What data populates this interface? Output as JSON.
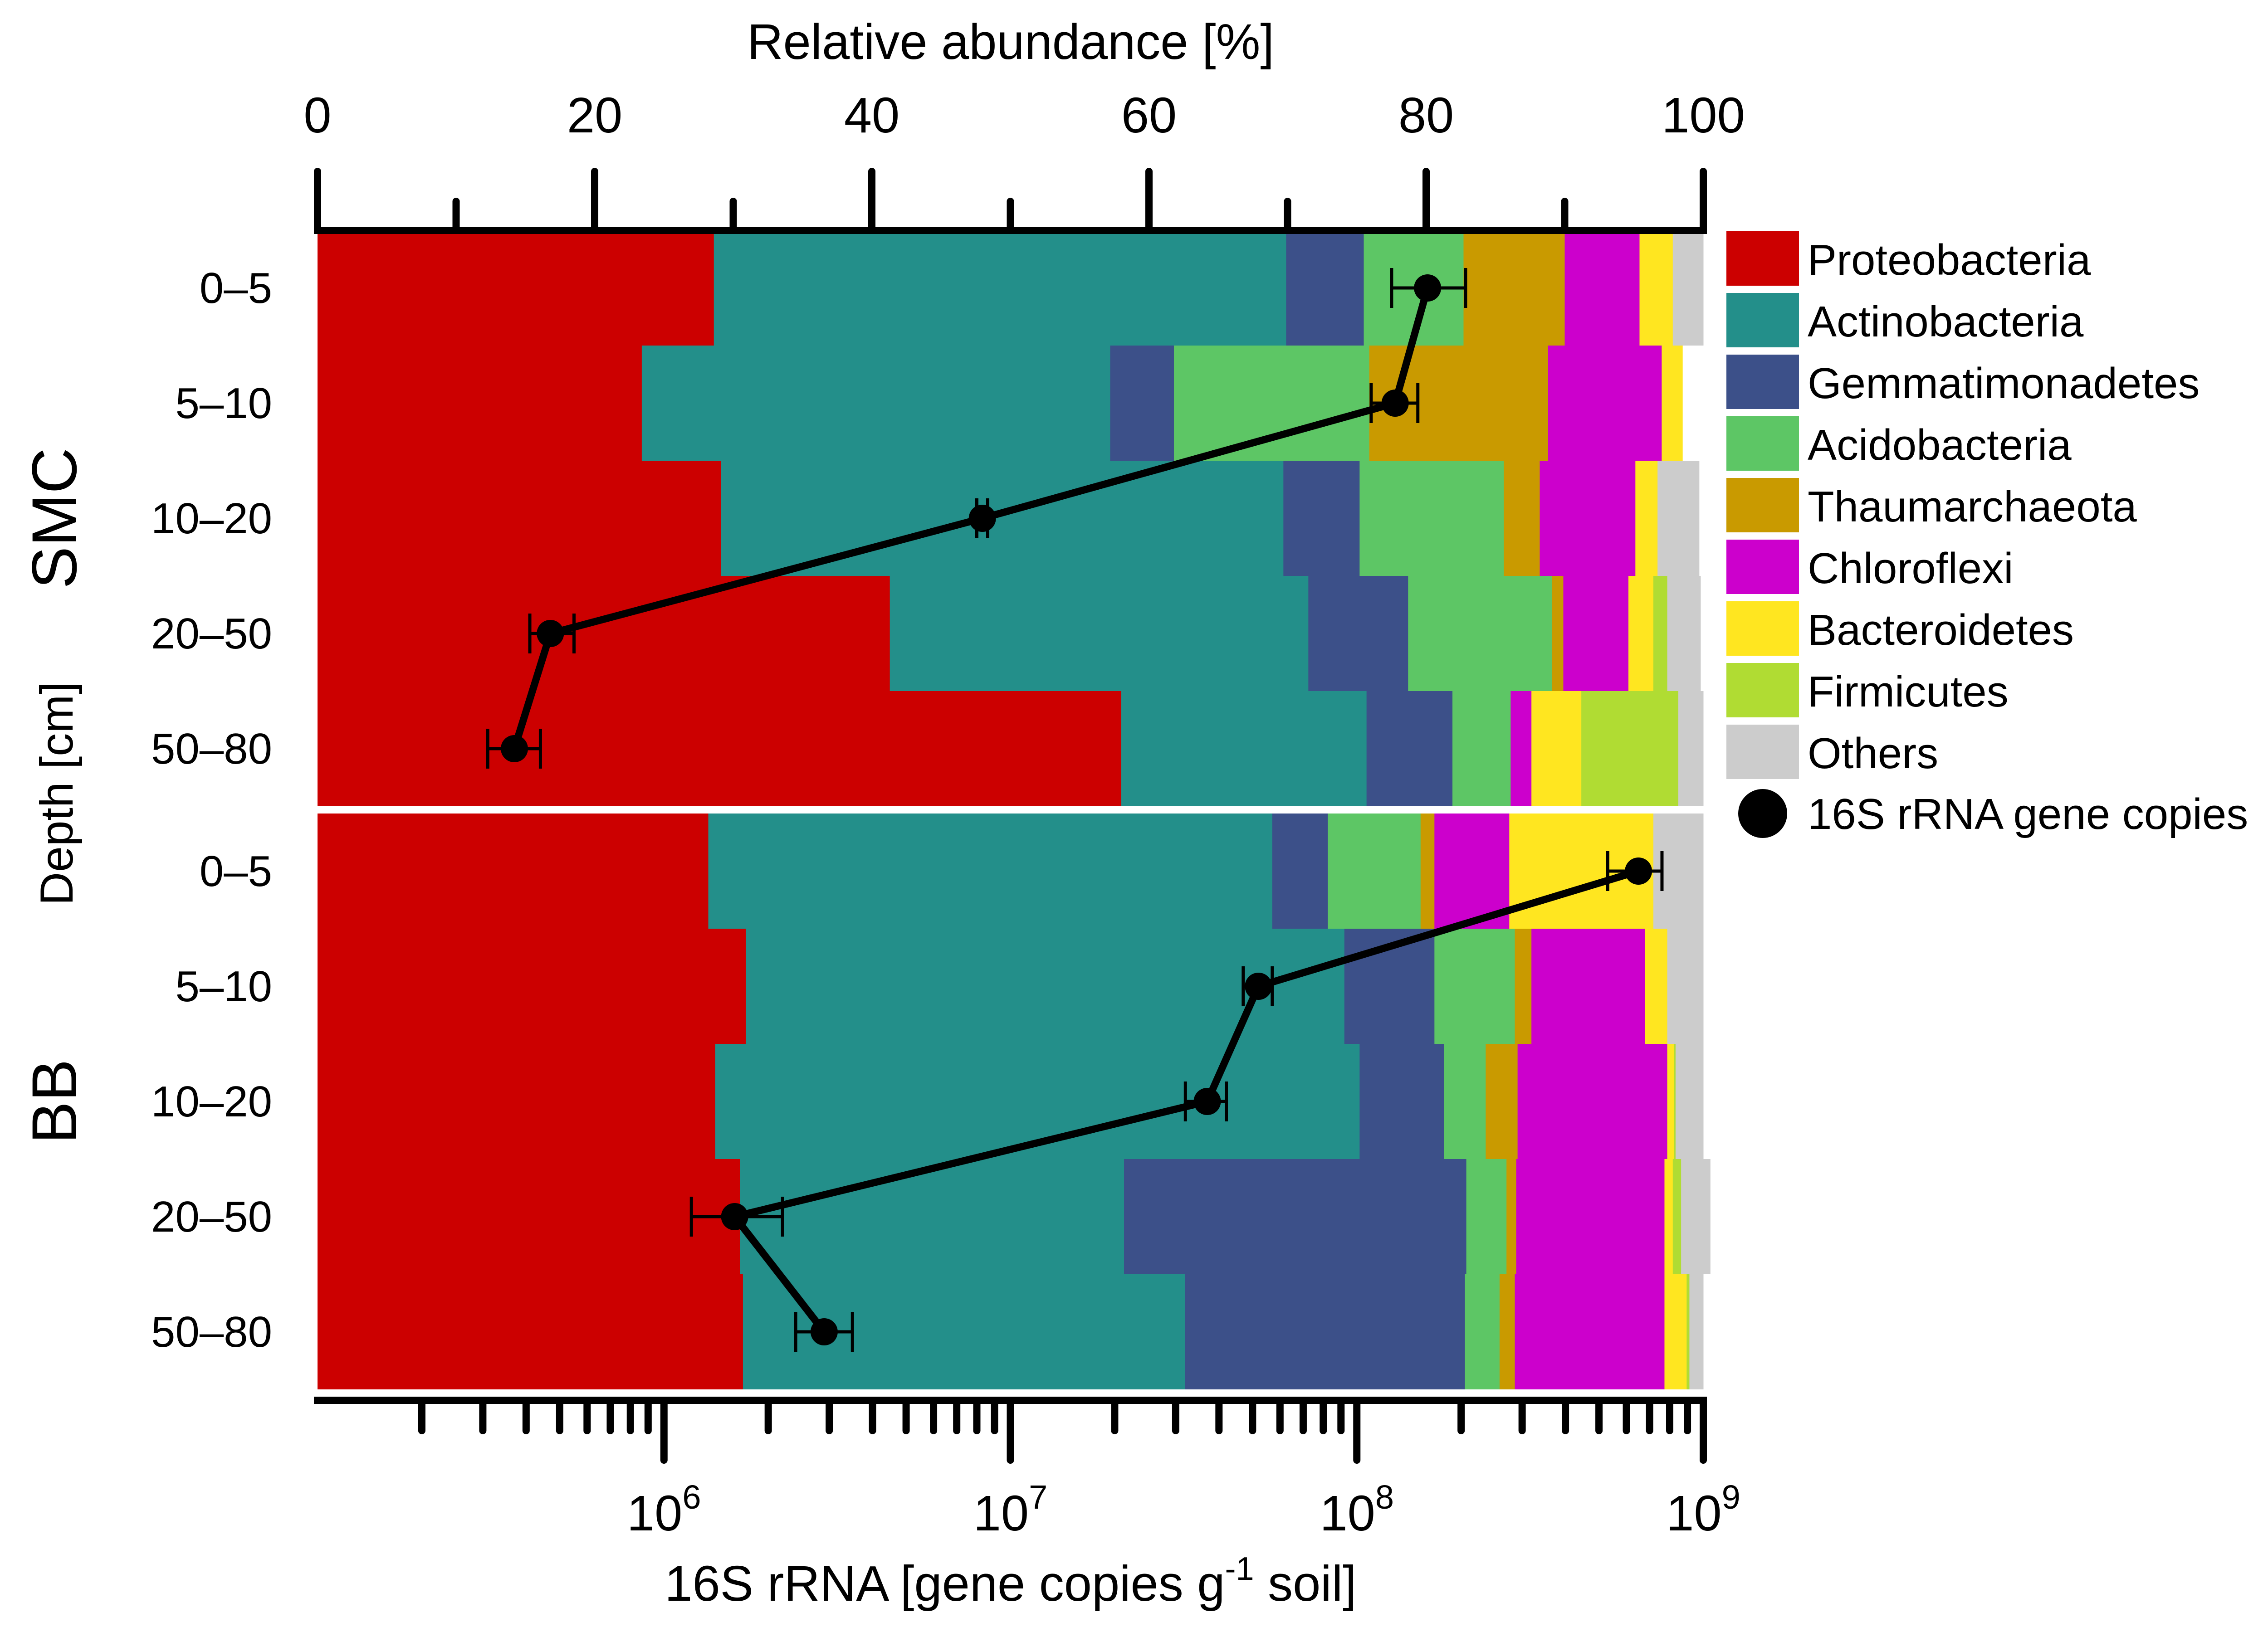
{
  "chart_data": {
    "type": "bar",
    "subtype": "horizontal-stacked-percent-with-line-overlay",
    "top_axis": {
      "label": "Relative abundance [%]",
      "range": [
        0,
        100
      ],
      "major_ticks": [
        0,
        20,
        40,
        60,
        80,
        100
      ],
      "tick_labels": [
        "0",
        "20",
        "40",
        "60",
        "80",
        "100"
      ],
      "minor_ticks": [
        10,
        30,
        50,
        70,
        90
      ]
    },
    "bottom_axis": {
      "label_prefix": "16S rRNA [gene copies g",
      "label_sup": "-1",
      "label_suffix": " soil]",
      "scale": "log10",
      "range": [
        100000,
        1000000000
      ],
      "major_ticks": [
        {
          "value": 1000000,
          "base": "10",
          "exp": "6"
        },
        {
          "value": 10000000,
          "base": "10",
          "exp": "7"
        },
        {
          "value": 100000000,
          "base": "10",
          "exp": "8"
        },
        {
          "value": 1000000000,
          "base": "10",
          "exp": "9"
        }
      ]
    },
    "y_axis_label": "Depth [cm]",
    "categories": [
      "Proteobacteria",
      "Actinobacteria",
      "Gemmatimonadetes",
      "Acidobacteria",
      "Thaumarchaeota",
      "Chloroflexi",
      "Bacteroidetes",
      "Firmicutes",
      "Others"
    ],
    "colors": [
      "#cc0000",
      "#238f8a",
      "#3c5089",
      "#5dc665",
      "#c99a00",
      "#cc00cc",
      "#ffe620",
      "#b0dc33",
      "#cccccc"
    ],
    "marker_legend": "16S rRNA gene copies",
    "sites": [
      {
        "name": "SMC",
        "rows": [
          {
            "depth": "0–5",
            "values": [
              28.6,
              41.3,
              5.6,
              7.2,
              7.3,
              5.4,
              2.4,
              0.0,
              2.2
            ],
            "gene_copies": 160000000,
            "err_low": 126000000,
            "err_high": 206000000
          },
          {
            "depth": "5–10",
            "values": [
              23.4,
              33.8,
              4.6,
              14.1,
              12.9,
              8.2,
              1.5,
              0.0,
              0.0
            ],
            "gene_copies": 129000000,
            "err_low": 110000000,
            "err_high": 150000000
          },
          {
            "depth": "10–20",
            "values": [
              29.1,
              40.6,
              5.5,
              10.4,
              2.6,
              6.9,
              1.6,
              0.0,
              3.0
            ],
            "gene_copies": 8300000,
            "err_low": 8000000,
            "err_high": 8600000
          },
          {
            "depth": "20–50",
            "values": [
              41.3,
              30.2,
              7.2,
              10.4,
              0.8,
              4.7,
              1.8,
              1.0,
              2.4
            ],
            "gene_copies": 470000,
            "err_low": 410000,
            "err_high": 550000
          },
          {
            "depth": "50–80",
            "values": [
              58.0,
              17.7,
              6.2,
              4.2,
              0.0,
              1.5,
              3.6,
              7.0,
              1.8
            ],
            "gene_copies": 370000,
            "err_low": 310000,
            "err_high": 440000
          }
        ]
      },
      {
        "name": "BB",
        "rows": [
          {
            "depth": "0–5",
            "values": [
              28.2,
              40.7,
              4.0,
              6.7,
              1.0,
              5.4,
              10.4,
              0.0,
              3.6
            ],
            "gene_copies": 650000000,
            "err_low": 530000000,
            "err_high": 760000000
          },
          {
            "depth": "5–10",
            "values": [
              30.9,
              43.2,
              6.5,
              5.8,
              1.2,
              8.2,
              1.6,
              0.0,
              2.6
            ],
            "gene_copies": 52000000,
            "err_low": 47000000,
            "err_high": 57000000
          },
          {
            "depth": "10–20",
            "values": [
              28.7,
              46.5,
              6.1,
              3.0,
              2.3,
              10.8,
              0.5,
              0.1,
              2.0
            ],
            "gene_copies": 37000000,
            "err_low": 32000000,
            "err_high": 42000000
          },
          {
            "depth": "20–50",
            "values": [
              30.5,
              27.7,
              24.7,
              2.9,
              0.7,
              10.7,
              0.6,
              0.6,
              2.1
            ],
            "gene_copies": 1600000,
            "err_low": 1200000,
            "err_high": 2200000
          },
          {
            "depth": "50–80",
            "values": [
              30.7,
              31.9,
              20.2,
              2.5,
              1.1,
              10.8,
              1.6,
              0.2,
              1.0
            ],
            "gene_copies": 2900000,
            "err_low": 2400000,
            "err_high": 3500000
          }
        ]
      }
    ]
  }
}
